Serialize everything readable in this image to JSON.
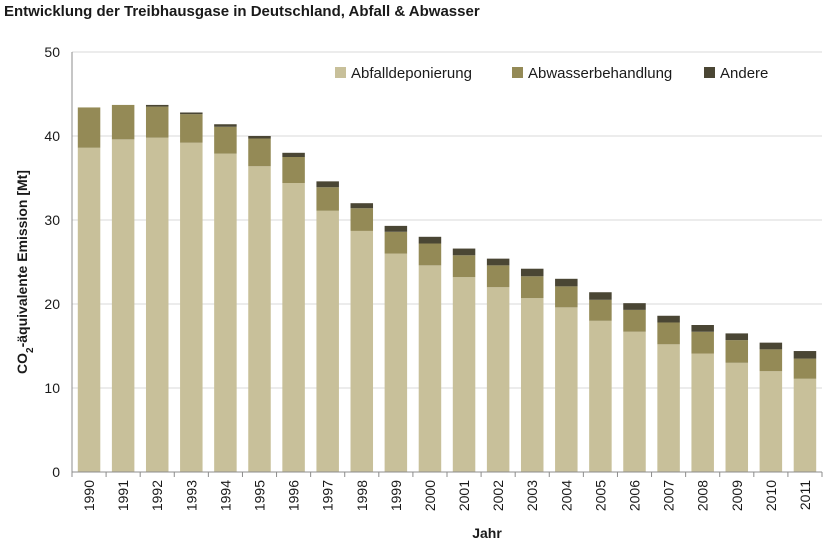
{
  "chart_data": {
    "type": "bar",
    "stacked": true,
    "title": "Entwicklung der Treibhausgase in Deutschland, Abfall & Abwasser",
    "xlabel": "Jahr",
    "ylabel_prefix": "CO",
    "ylabel_sub": "2",
    "ylabel_suffix": "-äquivalente Emission [Mt]",
    "ylim": [
      0,
      50
    ],
    "yticks": [
      0,
      10,
      20,
      30,
      40,
      50
    ],
    "grid": true,
    "legend_position": "top-right",
    "categories": [
      "1990",
      "1991",
      "1992",
      "1993",
      "1994",
      "1995",
      "1996",
      "1997",
      "1998",
      "1999",
      "2000",
      "2001",
      "2002",
      "2003",
      "2004",
      "2005",
      "2006",
      "2007",
      "2008",
      "2009",
      "2010",
      "2011"
    ],
    "series": [
      {
        "name": "Abfalldeponierung",
        "color": "#c8c09a",
        "values": [
          38.6,
          39.6,
          39.8,
          39.2,
          37.9,
          36.4,
          34.4,
          31.1,
          28.7,
          26.0,
          24.6,
          23.2,
          22.0,
          20.7,
          19.6,
          18.0,
          16.7,
          15.2,
          14.1,
          13.0,
          12.0,
          11.1
        ]
      },
      {
        "name": "Abwasserbehandlung",
        "color": "#948a56",
        "values": [
          4.8,
          4.1,
          3.7,
          3.4,
          3.2,
          3.3,
          3.1,
          2.8,
          2.7,
          2.6,
          2.6,
          2.6,
          2.6,
          2.6,
          2.5,
          2.5,
          2.6,
          2.6,
          2.6,
          2.7,
          2.6,
          2.4
        ]
      },
      {
        "name": "Andere",
        "color": "#4a4634",
        "values": [
          0.0,
          0.0,
          0.2,
          0.2,
          0.3,
          0.3,
          0.5,
          0.7,
          0.6,
          0.7,
          0.8,
          0.8,
          0.8,
          0.9,
          0.9,
          0.9,
          0.8,
          0.8,
          0.8,
          0.8,
          0.8,
          0.9
        ]
      }
    ]
  }
}
